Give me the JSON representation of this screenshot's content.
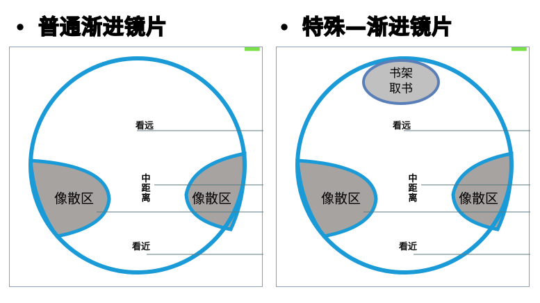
{
  "left": {
    "title": "普通渐进镜片",
    "far_label": "看远",
    "mid_label": [
      "中",
      "距",
      "离"
    ],
    "near_label": "看近",
    "blur_left": "像散区",
    "blur_right": "像散区"
  },
  "right": {
    "title": "特殊—渐进镜片",
    "top_zone_line1": "书架",
    "top_zone_line2": "取书",
    "far_label": "看远",
    "mid_label": [
      "中",
      "距",
      "离"
    ],
    "near_label": "看近",
    "blur_left": "像散区",
    "blur_right": "像散区"
  },
  "colors": {
    "lens_ring": "#1a9ad6",
    "blur_fill": "#a7a3a1",
    "oval_fill": "#c0c0c0",
    "oval_ring": "#5a7fb8",
    "lead_line": "#5a7a80"
  }
}
